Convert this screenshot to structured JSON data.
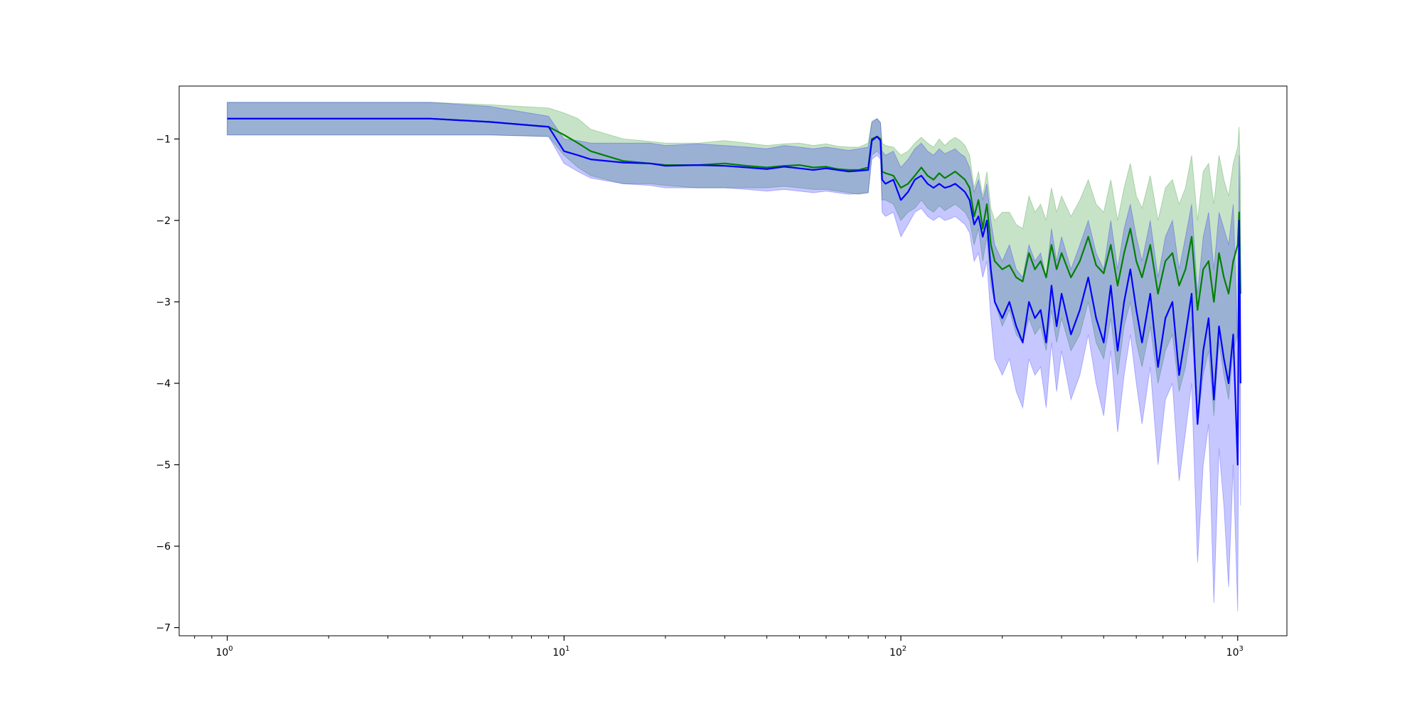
{
  "chart_data": {
    "type": "line",
    "title": "",
    "xlabel": "",
    "ylabel": "",
    "xscale": "log",
    "xlim": [
      0.72,
      1400
    ],
    "ylim": [
      -7.1,
      -0.35
    ],
    "grid": false,
    "legend": "none",
    "x_ticks": [
      {
        "value": 1,
        "base": "10",
        "exp": "0"
      },
      {
        "value": 10,
        "base": "10",
        "exp": "1"
      },
      {
        "value": 100,
        "base": "10",
        "exp": "2"
      },
      {
        "value": 1000,
        "base": "10",
        "exp": "3"
      }
    ],
    "y_ticks": [
      {
        "value": -1,
        "label": "−1"
      },
      {
        "value": -2,
        "label": "−2"
      },
      {
        "value": -3,
        "label": "−3"
      },
      {
        "value": -4,
        "label": "−4"
      },
      {
        "value": -5,
        "label": "−5"
      },
      {
        "value": -6,
        "label": "−6"
      },
      {
        "value": -7,
        "label": "−7"
      }
    ],
    "series": [
      {
        "color": "#008000",
        "band_color": "#008000",
        "band_opacity": 0.22,
        "x": [
          1,
          2,
          4,
          6,
          9,
          10,
          11,
          12,
          15,
          18,
          20,
          25,
          30,
          35,
          40,
          45,
          50,
          55,
          60,
          65,
          70,
          75,
          80,
          82,
          85,
          87,
          88,
          90,
          95,
          100,
          105,
          110,
          115,
          120,
          125,
          130,
          135,
          140,
          145,
          150,
          155,
          160,
          165,
          170,
          175,
          180,
          185,
          190,
          200,
          210,
          220,
          230,
          240,
          250,
          260,
          270,
          280,
          290,
          300,
          320,
          340,
          360,
          380,
          400,
          420,
          440,
          460,
          480,
          500,
          520,
          550,
          580,
          610,
          640,
          670,
          700,
          730,
          760,
          790,
          820,
          850,
          880,
          910,
          940,
          970,
          1000,
          1010,
          1020
        ],
        "y": [
          -0.75,
          -0.75,
          -0.75,
          -0.79,
          -0.85,
          -0.95,
          -1.05,
          -1.15,
          -1.27,
          -1.3,
          -1.32,
          -1.32,
          -1.3,
          -1.33,
          -1.35,
          -1.33,
          -1.32,
          -1.35,
          -1.34,
          -1.37,
          -1.38,
          -1.38,
          -1.35,
          -1.0,
          -0.97,
          -1.0,
          -1.4,
          -1.42,
          -1.45,
          -1.6,
          -1.55,
          -1.45,
          -1.35,
          -1.45,
          -1.5,
          -1.42,
          -1.48,
          -1.44,
          -1.4,
          -1.45,
          -1.5,
          -1.6,
          -1.95,
          -1.75,
          -2.1,
          -1.8,
          -2.3,
          -2.5,
          -2.6,
          -2.55,
          -2.7,
          -2.75,
          -2.4,
          -2.6,
          -2.5,
          -2.7,
          -2.3,
          -2.6,
          -2.4,
          -2.7,
          -2.5,
          -2.2,
          -2.55,
          -2.65,
          -2.3,
          -2.8,
          -2.4,
          -2.1,
          -2.5,
          -2.7,
          -2.3,
          -2.9,
          -2.5,
          -2.4,
          -2.8,
          -2.6,
          -2.2,
          -3.1,
          -2.6,
          -2.5,
          -3.0,
          -2.4,
          -2.7,
          -2.9,
          -2.5,
          -2.3,
          -1.9,
          -2.9
        ],
        "lower": [
          -0.95,
          -0.95,
          -0.95,
          -0.95,
          -0.97,
          -1.2,
          -1.35,
          -1.45,
          -1.55,
          -1.55,
          -1.57,
          -1.6,
          -1.6,
          -1.6,
          -1.6,
          -1.58,
          -1.6,
          -1.62,
          -1.62,
          -1.64,
          -1.66,
          -1.68,
          -1.66,
          -1.2,
          -1.15,
          -1.2,
          -1.75,
          -1.75,
          -1.8,
          -2.0,
          -1.9,
          -1.85,
          -1.75,
          -1.85,
          -1.9,
          -1.82,
          -1.88,
          -1.84,
          -1.8,
          -1.85,
          -1.9,
          -2.0,
          -2.3,
          -2.1,
          -2.5,
          -2.2,
          -2.8,
          -3.0,
          -3.3,
          -3.1,
          -3.4,
          -3.5,
          -3.2,
          -3.4,
          -3.3,
          -3.6,
          -3.1,
          -3.5,
          -3.2,
          -3.6,
          -3.4,
          -3.0,
          -3.5,
          -3.7,
          -3.2,
          -3.9,
          -3.3,
          -3.0,
          -3.5,
          -3.8,
          -3.3,
          -4.0,
          -3.6,
          -3.4,
          -4.1,
          -3.8,
          -3.3,
          -4.5,
          -3.9,
          -3.6,
          -4.4,
          -3.5,
          -3.9,
          -4.2,
          -3.6,
          -3.4,
          -3.0,
          -4.0
        ],
        "upper": [
          -0.55,
          -0.55,
          -0.55,
          -0.58,
          -0.62,
          -0.68,
          -0.75,
          -0.88,
          -1.0,
          -1.03,
          -1.05,
          -1.05,
          -1.02,
          -1.05,
          -1.08,
          -1.06,
          -1.05,
          -1.08,
          -1.06,
          -1.09,
          -1.1,
          -1.1,
          -1.05,
          -0.78,
          -0.75,
          -0.8,
          -1.05,
          -1.08,
          -1.1,
          -1.2,
          -1.15,
          -1.05,
          -0.98,
          -1.05,
          -1.1,
          -1.0,
          -1.08,
          -1.02,
          -0.98,
          -1.02,
          -1.08,
          -1.2,
          -1.6,
          -1.4,
          -1.7,
          -1.4,
          -1.85,
          -2.0,
          -1.9,
          -1.9,
          -2.05,
          -2.1,
          -1.7,
          -1.9,
          -1.8,
          -2.0,
          -1.6,
          -1.9,
          -1.7,
          -1.95,
          -1.75,
          -1.5,
          -1.8,
          -1.9,
          -1.5,
          -2.0,
          -1.6,
          -1.3,
          -1.7,
          -1.85,
          -1.45,
          -2.0,
          -1.6,
          -1.5,
          -1.8,
          -1.6,
          -1.2,
          -2.0,
          -1.4,
          -1.3,
          -1.8,
          -1.2,
          -1.5,
          -1.7,
          -1.3,
          -1.1,
          -0.85,
          -1.6
        ]
      },
      {
        "color": "#0000ff",
        "band_color": "#0000ff",
        "band_opacity": 0.22,
        "x": [
          1,
          2,
          4,
          6,
          9,
          10,
          11,
          12,
          15,
          18,
          20,
          25,
          30,
          35,
          40,
          45,
          50,
          55,
          60,
          65,
          70,
          75,
          80,
          82,
          85,
          87,
          88,
          90,
          95,
          100,
          105,
          110,
          115,
          120,
          125,
          130,
          135,
          140,
          145,
          150,
          155,
          160,
          165,
          170,
          175,
          180,
          185,
          190,
          200,
          210,
          220,
          230,
          240,
          250,
          260,
          270,
          280,
          290,
          300,
          320,
          340,
          360,
          380,
          400,
          420,
          440,
          460,
          480,
          500,
          520,
          550,
          580,
          610,
          640,
          670,
          700,
          730,
          760,
          790,
          820,
          850,
          880,
          910,
          940,
          970,
          1000,
          1010,
          1020
        ],
        "y": [
          -0.75,
          -0.75,
          -0.75,
          -0.79,
          -0.85,
          -1.15,
          -1.2,
          -1.25,
          -1.29,
          -1.3,
          -1.33,
          -1.32,
          -1.33,
          -1.35,
          -1.37,
          -1.34,
          -1.36,
          -1.38,
          -1.36,
          -1.38,
          -1.4,
          -1.39,
          -1.38,
          -1.02,
          -0.97,
          -1.02,
          -1.5,
          -1.55,
          -1.5,
          -1.75,
          -1.65,
          -1.5,
          -1.45,
          -1.55,
          -1.6,
          -1.55,
          -1.6,
          -1.58,
          -1.55,
          -1.6,
          -1.65,
          -1.75,
          -2.05,
          -1.95,
          -2.2,
          -2.0,
          -2.6,
          -3.0,
          -3.2,
          -3.0,
          -3.3,
          -3.5,
          -3.0,
          -3.2,
          -3.1,
          -3.5,
          -2.8,
          -3.3,
          -2.9,
          -3.4,
          -3.1,
          -2.7,
          -3.2,
          -3.5,
          -2.8,
          -3.6,
          -3.0,
          -2.6,
          -3.1,
          -3.5,
          -2.9,
          -3.8,
          -3.2,
          -3.0,
          -3.9,
          -3.4,
          -2.9,
          -4.5,
          -3.6,
          -3.2,
          -4.2,
          -3.3,
          -3.7,
          -4.0,
          -3.4,
          -5.0,
          -2.0,
          -4.0
        ],
        "lower": [
          -0.95,
          -0.95,
          -0.95,
          -0.95,
          -0.97,
          -1.3,
          -1.4,
          -1.48,
          -1.55,
          -1.57,
          -1.6,
          -1.6,
          -1.6,
          -1.62,
          -1.64,
          -1.62,
          -1.64,
          -1.66,
          -1.64,
          -1.66,
          -1.68,
          -1.67,
          -1.66,
          -1.25,
          -1.2,
          -1.25,
          -1.9,
          -1.95,
          -1.9,
          -2.2,
          -2.05,
          -1.9,
          -1.85,
          -1.95,
          -2.0,
          -1.95,
          -2.0,
          -1.98,
          -1.95,
          -2.0,
          -2.05,
          -2.15,
          -2.5,
          -2.4,
          -2.7,
          -2.5,
          -3.2,
          -3.7,
          -3.9,
          -3.7,
          -4.1,
          -4.3,
          -3.7,
          -3.9,
          -3.8,
          -4.3,
          -3.5,
          -4.1,
          -3.6,
          -4.2,
          -3.9,
          -3.4,
          -4.0,
          -4.4,
          -3.6,
          -4.6,
          -3.9,
          -3.4,
          -4.0,
          -4.5,
          -3.8,
          -5.0,
          -4.2,
          -4.0,
          -5.2,
          -4.6,
          -4.0,
          -6.2,
          -5.0,
          -4.5,
          -6.7,
          -4.8,
          -5.5,
          -6.5,
          -5.0,
          -6.8,
          -3.2,
          -5.5
        ],
        "upper": [
          -0.55,
          -0.55,
          -0.55,
          -0.6,
          -0.72,
          -1.0,
          -1.02,
          -1.05,
          -1.05,
          -1.05,
          -1.08,
          -1.06,
          -1.08,
          -1.1,
          -1.12,
          -1.08,
          -1.1,
          -1.12,
          -1.1,
          -1.12,
          -1.14,
          -1.12,
          -1.1,
          -0.8,
          -0.75,
          -0.8,
          -1.15,
          -1.2,
          -1.15,
          -1.35,
          -1.25,
          -1.12,
          -1.05,
          -1.15,
          -1.2,
          -1.12,
          -1.18,
          -1.15,
          -1.12,
          -1.18,
          -1.22,
          -1.35,
          -1.65,
          -1.5,
          -1.75,
          -1.55,
          -2.0,
          -2.3,
          -2.5,
          -2.3,
          -2.6,
          -2.7,
          -2.3,
          -2.5,
          -2.4,
          -2.7,
          -2.1,
          -2.5,
          -2.2,
          -2.6,
          -2.3,
          -2.0,
          -2.4,
          -2.6,
          -2.0,
          -2.6,
          -2.1,
          -1.8,
          -2.2,
          -2.5,
          -2.0,
          -2.7,
          -2.2,
          -2.0,
          -2.6,
          -2.2,
          -1.8,
          -2.9,
          -2.2,
          -1.9,
          -2.6,
          -1.9,
          -2.1,
          -2.3,
          -1.8,
          -3.5,
          -1.2,
          -2.6
        ]
      }
    ]
  }
}
